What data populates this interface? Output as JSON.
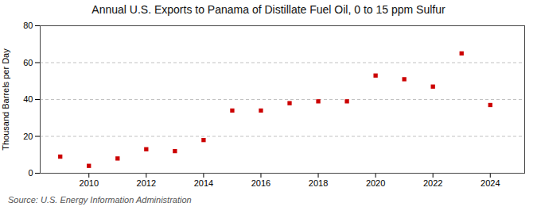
{
  "chart_data": {
    "type": "scatter",
    "title": "Annual U.S. Exports to Panama of Distillate Fuel Oil, 0 to 15 ppm Sulfur",
    "ylabel": "Thousand Barrels per Day",
    "source": "Source: U.S. Energy Information Administration",
    "x": [
      2009,
      2010,
      2011,
      2012,
      2013,
      2014,
      2015,
      2016,
      2017,
      2018,
      2019,
      2020,
      2021,
      2022,
      2023,
      2024
    ],
    "values": [
      9,
      4,
      8,
      13,
      12,
      18,
      34,
      34,
      38,
      39,
      39,
      53,
      51,
      47,
      65,
      37
    ],
    "color": "#cc0000",
    "marker": "square",
    "xlim": [
      2008.3,
      2025.2
    ],
    "xticks": [
      2010,
      2012,
      2014,
      2016,
      2018,
      2020,
      2022,
      2024
    ],
    "ylim": [
      0,
      80
    ],
    "yticks": [
      0,
      20,
      40,
      60,
      80
    ],
    "grid": true
  }
}
